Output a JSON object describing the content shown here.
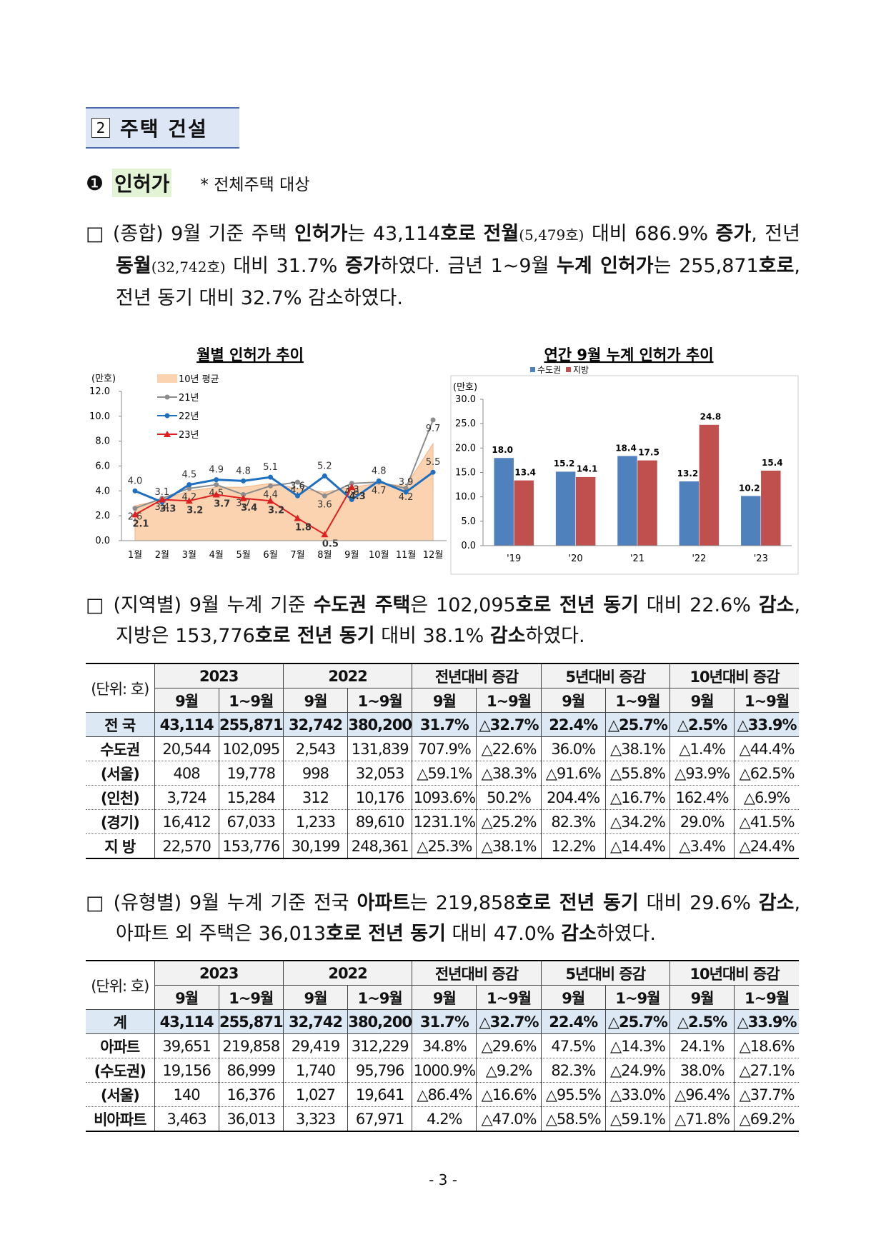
{
  "section": {
    "num": "2",
    "title": "주택 건설"
  },
  "subsection": {
    "num": "❶",
    "title": "인허가",
    "note": "* 전체주택 대상"
  },
  "paragraphs": [
    {
      "segments": [
        {
          "text": "□ (종합) 9월 기준 주택 "
        },
        {
          "text": "인허가",
          "bold": true
        },
        {
          "text": "는 43,114"
        },
        {
          "text": "호로",
          "bold": true
        },
        {
          "text": " "
        },
        {
          "text": "전월",
          "bold": true
        },
        {
          "text": "(5,479호)",
          "small": true
        },
        {
          "text": " 대비 686.9% "
        },
        {
          "text": "증가",
          "bold": true
        },
        {
          "text": ", 전년 "
        },
        {
          "text": "동월",
          "bold": true
        },
        {
          "text": "(32,742호)",
          "small": true
        },
        {
          "text": " 대비 31.7% "
        },
        {
          "text": "증가",
          "bold": true
        },
        {
          "text": "하였다. 금년 1~9월 "
        },
        {
          "text": "누계 인허가",
          "bold": true
        },
        {
          "text": "는 255,871"
        },
        {
          "text": "호로",
          "bold": true
        },
        {
          "text": ", 전년 동기 대비 32.7% 감소하였다."
        }
      ]
    },
    {
      "segments": [
        {
          "text": "□ (지역별) 9월 누계 기준 "
        },
        {
          "text": "수도권 주택",
          "bold": true
        },
        {
          "text": "은 102,095"
        },
        {
          "text": "호로 전년 동기",
          "bold": true
        },
        {
          "text": " 대비 22.6% "
        },
        {
          "text": "감소",
          "bold": true
        },
        {
          "text": ", 지방은 153,776"
        },
        {
          "text": "호로 전년 동기",
          "bold": true
        },
        {
          "text": " 대비 38.1% "
        },
        {
          "text": "감소",
          "bold": true
        },
        {
          "text": "하였다."
        }
      ]
    },
    {
      "segments": [
        {
          "text": "□ (유형별) 9월 누계 기준 전국 "
        },
        {
          "text": "아파트",
          "bold": true
        },
        {
          "text": "는 219,858"
        },
        {
          "text": "호로 전년 동기",
          "bold": true
        },
        {
          "text": " 대비 29.6% "
        },
        {
          "text": "감소",
          "bold": true
        },
        {
          "text": ", 아파트 외 주택은 36,013"
        },
        {
          "text": "호로 전년 동기",
          "bold": true
        },
        {
          "text": " 대비 47.0% "
        },
        {
          "text": "감소",
          "bold": true
        },
        {
          "text": "하였다."
        }
      ]
    }
  ],
  "chart_data": [
    {
      "type": "line",
      "title": "월별 인허가 추이",
      "unit": "(만호)",
      "categories": [
        "1월",
        "2월",
        "3월",
        "4월",
        "5월",
        "6월",
        "7월",
        "8월",
        "9월",
        "10월",
        "11월",
        "12월"
      ],
      "ylim": [
        0,
        12
      ],
      "yticks": [
        {
          "value": 0,
          "label": "0.0"
        },
        {
          "value": 2,
          "label": "2.0"
        },
        {
          "value": 4,
          "label": "4.0"
        },
        {
          "value": 6,
          "label": "6.0"
        },
        {
          "value": 8,
          "label": "8.0"
        },
        {
          "value": 10,
          "label": "10.0"
        },
        {
          "value": 12,
          "label": "12.0"
        }
      ],
      "legend": "upper left",
      "series": [
        {
          "name": "10년 평균",
          "type": "area",
          "color": "#fbd3b0",
          "values": [
            2.8,
            3.3,
            4.0,
            4.3,
            4.3,
            4.6,
            4.2,
            3.9,
            4.3,
            4.6,
            4.4,
            7.8
          ]
        },
        {
          "name": "21년",
          "color": "#8c8c8c",
          "marker": "circle",
          "values": [
            2.6,
            3.4,
            4.2,
            4.5,
            3.7,
            4.4,
            4.7,
            3.6,
            4.6,
            4.7,
            4.2,
            9.7
          ],
          "value_labels": [
            "2.6",
            "3.4",
            "4.2",
            "4.5",
            "3.7",
            "4.4",
            "4.7",
            "3.6",
            "4.6",
            "4.7",
            "4.2",
            "9.7"
          ]
        },
        {
          "name": "22년",
          "color": "#1f6fc0",
          "marker": "circle",
          "values": [
            4.0,
            3.1,
            4.5,
            4.9,
            4.8,
            5.1,
            3.6,
            5.2,
            3.3,
            4.8,
            3.9,
            5.5
          ],
          "value_labels": [
            "4.0",
            "3.1",
            "4.5",
            "4.9",
            "4.8",
            "5.1",
            "3.6",
            "5.2",
            "3.3",
            "4.8",
            "3.9",
            "5.5"
          ]
        },
        {
          "name": "23년",
          "color": "#e02020",
          "marker": "triangle",
          "values": [
            2.1,
            3.3,
            3.2,
            3.7,
            3.4,
            3.2,
            1.8,
            0.5,
            4.3,
            null,
            null,
            null
          ],
          "value_labels": [
            "2.1",
            "3.3",
            "3.2",
            "3.7",
            "3.4",
            "3.2",
            "1.8",
            "0.5",
            "4.3",
            null,
            null,
            null
          ]
        }
      ]
    },
    {
      "type": "bar",
      "title": "연간 9월 누계 인허가 추이",
      "unit": "(만호)",
      "categories": [
        "'19",
        "'20",
        "'21",
        "'22",
        "'23"
      ],
      "ylim": [
        0,
        30
      ],
      "yticks": [
        {
          "value": 0,
          "label": "0.0"
        },
        {
          "value": 5,
          "label": "5.0"
        },
        {
          "value": 10,
          "label": "10.0"
        },
        {
          "value": 15,
          "label": "15.0"
        },
        {
          "value": 20,
          "label": "20.0"
        },
        {
          "value": 25,
          "label": "25.0"
        },
        {
          "value": 30,
          "label": "30.0"
        }
      ],
      "legend": "top",
      "series": [
        {
          "name": "수도권",
          "color": "#4f81bd",
          "values": [
            18.0,
            15.2,
            18.4,
            13.2,
            10.2
          ],
          "value_labels": [
            "18.0",
            "15.2",
            "18.4",
            "13.2",
            "10.2"
          ]
        },
        {
          "name": "지방",
          "color": "#c0504d",
          "values": [
            13.4,
            14.1,
            17.5,
            24.8,
            15.4
          ],
          "value_labels": [
            "13.4",
            "14.1",
            "17.5",
            "24.8",
            "15.4"
          ]
        }
      ]
    }
  ],
  "tables": [
    {
      "unit": "(단위: 호)",
      "groups": [
        "2023",
        "2022",
        "전년대비 증감",
        "5년대비 증감",
        "10년대비 증감"
      ],
      "subheaders": [
        "9월",
        "1~9월"
      ],
      "rows": [
        {
          "label": "전 국",
          "highlight": true,
          "cells": [
            "43,114",
            "255,871",
            "32,742",
            "380,200",
            "31.7%",
            "△32.7%",
            "22.4%",
            "△25.7%",
            "△2.5%",
            "△33.9%"
          ]
        },
        {
          "label": "수도권",
          "cells": [
            "20,544",
            "102,095",
            "2,543",
            "131,839",
            "707.9%",
            "△22.6%",
            "36.0%",
            "△38.1%",
            "△1.4%",
            "△44.4%"
          ]
        },
        {
          "label": "(서울)",
          "cells": [
            "408",
            "19,778",
            "998",
            "32,053",
            "△59.1%",
            "△38.3%",
            "△91.6%",
            "△55.8%",
            "△93.9%",
            "△62.5%"
          ]
        },
        {
          "label": "(인천)",
          "cells": [
            "3,724",
            "15,284",
            "312",
            "10,176",
            "1093.6%",
            "50.2%",
            "204.4%",
            "△16.7%",
            "162.4%",
            "△6.9%"
          ]
        },
        {
          "label": "(경기)",
          "cells": [
            "16,412",
            "67,033",
            "1,233",
            "89,610",
            "1231.1%",
            "△25.2%",
            "82.3%",
            "△34.2%",
            "29.0%",
            "△41.5%"
          ]
        },
        {
          "label": "지 방",
          "cells": [
            "22,570",
            "153,776",
            "30,199",
            "248,361",
            "△25.3%",
            "△38.1%",
            "12.2%",
            "△14.4%",
            "△3.4%",
            "△24.4%"
          ]
        }
      ]
    },
    {
      "unit": "(단위: 호)",
      "groups": [
        "2023",
        "2022",
        "전년대비 증감",
        "5년대비 증감",
        "10년대비 증감"
      ],
      "subheaders": [
        "9월",
        "1~9월"
      ],
      "rows": [
        {
          "label": "계",
          "highlight": true,
          "cells": [
            "43,114",
            "255,871",
            "32,742",
            "380,200",
            "31.7%",
            "△32.7%",
            "22.4%",
            "△25.7%",
            "△2.5%",
            "△33.9%"
          ]
        },
        {
          "label": "아파트",
          "cells": [
            "39,651",
            "219,858",
            "29,419",
            "312,229",
            "34.8%",
            "△29.6%",
            "47.5%",
            "△14.3%",
            "24.1%",
            "△18.6%"
          ]
        },
        {
          "label": "(수도권)",
          "cells": [
            "19,156",
            "86,999",
            "1,740",
            "95,796",
            "1000.9%",
            "△9.2%",
            "82.3%",
            "△24.9%",
            "38.0%",
            "△27.1%"
          ]
        },
        {
          "label": "(서울)",
          "cells": [
            "140",
            "16,376",
            "1,027",
            "19,641",
            "△86.4%",
            "△16.6%",
            "△95.5%",
            "△33.0%",
            "△96.4%",
            "△37.7%"
          ]
        },
        {
          "label": "비아파트",
          "cells": [
            "3,463",
            "36,013",
            "3,323",
            "67,971",
            "4.2%",
            "△47.0%",
            "△58.5%",
            "△59.1%",
            "△71.8%",
            "△69.2%"
          ]
        }
      ]
    }
  ],
  "footer": "- 3 -"
}
